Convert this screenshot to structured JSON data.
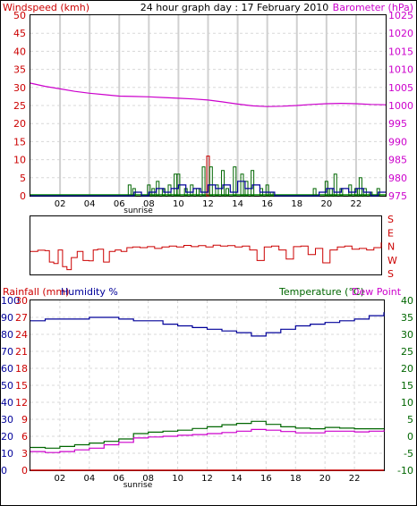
{
  "header": {
    "left_label": "Windspeed (kmh)",
    "title": "24 hour graph day : 17 February 2010",
    "right_label": "Barometer (hPa)"
  },
  "wind_dir_labels": [
    "S",
    "E",
    "N",
    "W",
    "S"
  ],
  "bottom_header": {
    "rainfall_label": "Rainfall (mm)",
    "humidity_label": "Humidity %",
    "temperature_label": "Temperature (°C)",
    "dewpoint_label": "Dew Point"
  },
  "colors": {
    "windspeed": "#cc0000",
    "barometer": "#cc00cc",
    "gust": "#006600",
    "avg_wind": "#000099",
    "direction": "#cc0000",
    "humidity": "#000099",
    "temperature": "#006600",
    "dewpoint": "#cc00cc",
    "rainfall": "#cc0000",
    "grid": "#cccccc"
  },
  "chart_data": [
    {
      "type": "line",
      "panel": "wind-barometer",
      "x_ticks": [
        "02",
        "04",
        "06",
        "08",
        "10",
        "12",
        "14",
        "16",
        "18",
        "20",
        "22"
      ],
      "x_annotation": "sunrise",
      "sunrise_hour": 6.5,
      "xlim": [
        0,
        24
      ],
      "y_left": {
        "label": "Windspeed (kmh)",
        "ylim": [
          0,
          50
        ],
        "ticks": [
          "0",
          "5",
          "10",
          "15",
          "20",
          "25",
          "30",
          "35",
          "40",
          "45",
          "50"
        ]
      },
      "y_right": {
        "label": "Barometer (hPa)",
        "ylim": [
          975,
          1025
        ],
        "ticks": [
          "975",
          "980",
          "985",
          "990",
          "995",
          "1000",
          "1005",
          "1010",
          "1015",
          "1020",
          "1025"
        ]
      },
      "series": [
        {
          "key": "barometer",
          "axis": "right",
          "x": [
            0,
            1,
            2,
            3,
            4,
            5,
            6,
            7,
            8,
            9,
            10,
            11,
            12,
            13,
            14,
            15,
            16,
            17,
            18,
            19,
            20,
            21,
            22,
            23,
            24
          ],
          "y": [
            1006.2,
            1005.3,
            1004.6,
            1003.9,
            1003.4,
            1003.0,
            1002.6,
            1002.5,
            1002.4,
            1002.2,
            1002.0,
            1001.8,
            1001.5,
            1001.0,
            1000.4,
            999.9,
            999.7,
            999.8,
            1000.0,
            1000.3,
            1000.5,
            1000.6,
            1000.5,
            1000.3,
            1000.2
          ]
        },
        {
          "key": "gust",
          "axis": "left",
          "style": "bars",
          "x": [
            6.7,
            7.0,
            8.0,
            8.3,
            8.6,
            9.0,
            9.4,
            9.8,
            10.0,
            10.5,
            10.9,
            11.3,
            11.7,
            12.0,
            12.2,
            12.6,
            13.0,
            13.3,
            13.8,
            14.3,
            14.6,
            15.0,
            15.6,
            16.0,
            16.3,
            19.2,
            20.0,
            20.3,
            20.6,
            21.0,
            21.6,
            22.0,
            22.3,
            22.6,
            23.0,
            23.5
          ],
          "y": [
            3,
            2,
            3,
            2,
            4,
            2,
            3,
            6,
            6,
            2,
            3,
            2,
            8,
            11,
            8,
            3,
            7,
            2,
            8,
            6,
            4,
            7,
            2,
            3,
            1,
            2,
            4,
            2,
            6,
            2,
            3,
            2,
            5,
            2,
            1,
            2
          ]
        },
        {
          "key": "avg_wind",
          "axis": "left",
          "style": "line",
          "x": [
            0,
            6.5,
            7.0,
            7.5,
            8.0,
            8.5,
            9.0,
            9.5,
            10.0,
            10.5,
            11.0,
            11.5,
            12.0,
            12.5,
            13.0,
            13.5,
            14.0,
            14.5,
            15.0,
            15.5,
            16.0,
            16.5,
            19.0,
            19.5,
            20.0,
            20.5,
            21.0,
            21.5,
            22.0,
            22.5,
            23.0,
            23.5,
            24.0
          ],
          "y": [
            0,
            0,
            1,
            0,
            1,
            2,
            1,
            2,
            3,
            1,
            2,
            1,
            3,
            2,
            3,
            1,
            4,
            2,
            3,
            1,
            1,
            0,
            0,
            1,
            2,
            1,
            2,
            1,
            2,
            1,
            0,
            1,
            1
          ]
        }
      ]
    },
    {
      "type": "line",
      "panel": "wind-direction",
      "xlim": [
        0,
        24
      ],
      "ylim": [
        0,
        360
      ],
      "y_ticks": [
        "S",
        "E",
        "N",
        "W",
        "S"
      ],
      "series": [
        {
          "key": "direction",
          "x": [
            0,
            0.5,
            1.0,
            1.3,
            1.6,
            1.9,
            2.2,
            2.5,
            2.8,
            3.2,
            3.6,
            4.0,
            4.3,
            4.6,
            5.0,
            5.4,
            5.8,
            6.2,
            6.6,
            7.0,
            7.5,
            8.0,
            8.5,
            9.0,
            9.5,
            10.0,
            10.5,
            11.0,
            11.5,
            12.0,
            12.5,
            13.0,
            13.5,
            14.0,
            14.5,
            15.0,
            15.5,
            16.0,
            16.5,
            17.0,
            17.5,
            18.0,
            18.5,
            19.0,
            19.5,
            20.0,
            20.5,
            21.0,
            21.5,
            22.0,
            22.5,
            23.0,
            23.5,
            24.0
          ],
          "y": [
            140,
            148,
            145,
            70,
            60,
            150,
            40,
            20,
            100,
            140,
            80,
            78,
            150,
            155,
            70,
            140,
            150,
            140,
            165,
            170,
            165,
            172,
            160,
            170,
            175,
            170,
            180,
            172,
            178,
            170,
            182,
            175,
            178,
            170,
            175,
            150,
            80,
            170,
            175,
            150,
            90,
            172,
            175,
            120,
            160,
            65,
            150,
            170,
            175,
            155,
            160,
            150,
            165,
            200
          ]
        }
      ]
    },
    {
      "type": "line",
      "panel": "humidity-temperature",
      "x_ticks": [
        "02",
        "04",
        "06",
        "08",
        "10",
        "12",
        "14",
        "16",
        "18",
        "20",
        "22"
      ],
      "x_annotation": "sunrise",
      "sunrise_hour": 6.5,
      "xlim": [
        0,
        24
      ],
      "y_humidity": {
        "label": "Humidity %",
        "ylim": [
          0,
          100
        ],
        "ticks": [
          "0",
          "10",
          "20",
          "30",
          "40",
          "50",
          "60",
          "70",
          "80",
          "90",
          "100"
        ]
      },
      "y_rainfall": {
        "label": "Rainfall (mm)",
        "ylim": [
          0,
          30
        ],
        "ticks": [
          "0",
          "3",
          "6",
          "9",
          "12",
          "15",
          "18",
          "21",
          "24",
          "27",
          "30"
        ]
      },
      "y_temperature": {
        "label": "Temperature (°C)",
        "ylim": [
          -10,
          40
        ],
        "ticks": [
          "-10",
          "-5",
          "0",
          "5",
          "10",
          "15",
          "20",
          "25",
          "30",
          "35",
          "40"
        ]
      },
      "series": [
        {
          "key": "humidity",
          "axis": "humidity",
          "x": [
            0,
            1,
            2,
            3,
            4,
            5,
            6,
            7,
            8,
            9,
            10,
            11,
            12,
            13,
            14,
            15,
            16,
            17,
            18,
            19,
            20,
            21,
            22,
            23,
            24
          ],
          "y": [
            88,
            89,
            89,
            89,
            90,
            90,
            89,
            88,
            88,
            86,
            85,
            84,
            83,
            82,
            81,
            79,
            81,
            83,
            85,
            86,
            87,
            88,
            89,
            91,
            93
          ]
        },
        {
          "key": "temperature",
          "axis": "temperature",
          "x": [
            0,
            1,
            2,
            3,
            4,
            5,
            6,
            7,
            8,
            9,
            10,
            11,
            12,
            13,
            14,
            15,
            16,
            17,
            18,
            19,
            20,
            21,
            22,
            23,
            24
          ],
          "y": [
            -3.3,
            -3.5,
            -3.0,
            -2.5,
            -2.0,
            -1.5,
            -0.8,
            0.8,
            1.2,
            1.5,
            1.8,
            2.3,
            2.8,
            3.4,
            3.8,
            4.4,
            3.5,
            2.8,
            2.4,
            2.2,
            2.6,
            2.4,
            2.2,
            2.2,
            2.2
          ]
        },
        {
          "key": "dewpoint",
          "axis": "temperature",
          "x": [
            0,
            1,
            2,
            3,
            4,
            5,
            6,
            7,
            8,
            9,
            10,
            11,
            12,
            13,
            14,
            15,
            16,
            17,
            18,
            19,
            20,
            21,
            22,
            23,
            24
          ],
          "y": [
            -4.5,
            -4.8,
            -4.5,
            -4.0,
            -3.5,
            -2.5,
            -1.8,
            -0.5,
            -0.2,
            0.0,
            0.3,
            0.5,
            0.8,
            1.1,
            1.5,
            2.0,
            1.8,
            1.4,
            1.0,
            1.0,
            1.5,
            1.5,
            1.3,
            1.5,
            1.8
          ]
        },
        {
          "key": "rainfall",
          "axis": "rainfall",
          "x": [
            0,
            24
          ],
          "y": [
            0,
            0
          ]
        }
      ]
    }
  ]
}
